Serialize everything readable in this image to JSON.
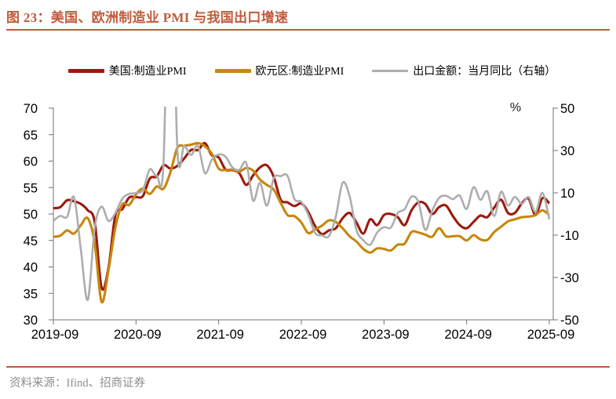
{
  "title": "图 23：美国、欧洲制造业 PMI 与我国出口增速",
  "source": "资料来源：Ifind、招商证券",
  "colors": {
    "accent": "#bf5b3b",
    "us_line": "#9b1a0e",
    "eu_line": "#c8860d",
    "export_line": "#adadad",
    "axis": "#737373",
    "tick_text": "#000000",
    "source_text": "#8f8f8f"
  },
  "legend": [
    {
      "label": "美国:制造业PMI",
      "color": "#9b1a0e"
    },
    {
      "label": "欧元区:制造业PMI",
      "color": "#c8860d"
    },
    {
      "label": "出口金额：当月同比（右轴）",
      "color": "#adadad"
    }
  ],
  "chart_data": {
    "type": "line",
    "title": "美国、欧洲制造业PMI与我国出口增速",
    "grid": false,
    "legend_position": "top",
    "x_ticks": [
      "2019-09",
      "2020-09",
      "2021-09",
      "2022-09",
      "2023-09",
      "2024-09",
      "2025-09"
    ],
    "left_axis": {
      "ticks": [
        70,
        65,
        60,
        55,
        50,
        45,
        40,
        35,
        30
      ],
      "range": [
        30,
        70
      ]
    },
    "right_axis": {
      "ticks": [
        50,
        30,
        10,
        -10,
        -30,
        -50
      ],
      "range": [
        -50,
        50
      ],
      "title": "%"
    },
    "x": [
      "2019-09",
      "2019-10",
      "2019-11",
      "2019-12",
      "2020-01",
      "2020-02",
      "2020-03",
      "2020-04",
      "2020-05",
      "2020-06",
      "2020-07",
      "2020-08",
      "2020-09",
      "2020-10",
      "2020-11",
      "2020-12",
      "2021-01",
      "2021-02",
      "2021-03",
      "2021-04",
      "2021-05",
      "2021-06",
      "2021-07",
      "2021-08",
      "2021-09",
      "2021-10",
      "2021-11",
      "2021-12",
      "2022-01",
      "2022-02",
      "2022-03",
      "2022-04",
      "2022-05",
      "2022-06",
      "2022-07",
      "2022-08",
      "2022-09",
      "2022-10",
      "2022-11",
      "2022-12",
      "2023-01",
      "2023-02",
      "2023-03",
      "2023-04",
      "2023-05",
      "2023-06",
      "2023-07",
      "2023-08",
      "2023-09",
      "2023-10",
      "2023-11",
      "2023-12",
      "2024-01",
      "2024-02",
      "2024-03",
      "2024-04",
      "2024-05",
      "2024-06",
      "2024-07",
      "2024-08",
      "2024-09",
      "2024-10",
      "2024-11",
      "2024-12",
      "2025-01",
      "2025-02",
      "2025-03",
      "2025-04",
      "2025-05",
      "2025-06",
      "2025-07",
      "2025-08",
      "2025-09"
    ],
    "series": [
      {
        "name": "美国:制造业PMI",
        "axis": "left",
        "color": "#9b1a0e",
        "values": [
          51.1,
          51.3,
          52.6,
          52.4,
          51.9,
          50.7,
          48.5,
          36.1,
          39.8,
          49.8,
          50.9,
          53.1,
          53.2,
          53.4,
          56.7,
          57.1,
          59.2,
          58.6,
          59.1,
          60.5,
          62.1,
          62.1,
          63.4,
          61.1,
          60.7,
          58.4,
          58.3,
          57.7,
          55.5,
          57.3,
          58.8,
          59.2,
          57.0,
          52.7,
          52.2,
          51.5,
          52.0,
          50.4,
          47.7,
          46.2,
          46.9,
          47.3,
          49.2,
          50.2,
          48.4,
          46.3,
          49.0,
          47.9,
          49.8,
          50.0,
          49.4,
          47.9,
          50.7,
          52.2,
          51.9,
          50.0,
          51.3,
          51.6,
          49.6,
          47.9,
          47.3,
          48.5,
          49.7,
          49.4,
          51.2,
          52.7,
          50.2,
          50.2,
          52.0,
          52.9,
          49.8,
          53.0,
          52.0
        ]
      },
      {
        "name": "欧元区:制造业PMI",
        "axis": "left",
        "color": "#c8860d",
        "values": [
          45.7,
          45.9,
          46.9,
          46.3,
          47.9,
          49.2,
          44.5,
          33.4,
          39.4,
          47.4,
          51.8,
          51.7,
          53.7,
          54.8,
          53.8,
          55.2,
          54.8,
          57.9,
          62.5,
          62.9,
          63.1,
          63.4,
          62.8,
          61.4,
          58.6,
          58.3,
          58.4,
          58.0,
          58.7,
          58.2,
          56.5,
          55.5,
          54.6,
          52.1,
          49.8,
          49.6,
          48.4,
          46.4,
          47.1,
          47.8,
          48.8,
          48.5,
          47.3,
          45.8,
          44.8,
          43.4,
          42.7,
          43.5,
          43.4,
          43.1,
          44.2,
          44.4,
          46.6,
          46.5,
          46.1,
          45.7,
          47.3,
          45.8,
          45.8,
          45.8,
          45.0,
          46.0,
          45.2,
          45.1,
          46.6,
          47.6,
          48.6,
          49.0,
          49.4,
          49.5,
          49.8,
          50.7,
          49.8
        ]
      },
      {
        "name": "出口金额：当月同比（右轴）",
        "axis": "right",
        "color": "#adadad",
        "values": [
          -3.2,
          -0.9,
          -1.3,
          7.9,
          -17.1,
          -40.6,
          -6.6,
          3.5,
          -3.3,
          0.5,
          7.2,
          9.5,
          9.9,
          11.4,
          21.1,
          18.1,
          24.8,
          154.9,
          30.6,
          32.3,
          27.9,
          32.2,
          19.3,
          25.6,
          28.1,
          27.1,
          22.0,
          20.9,
          24.1,
          6.3,
          14.7,
          3.9,
          16.9,
          17.9,
          18.0,
          7.1,
          5.7,
          -0.3,
          -9.0,
          -10.1,
          -10.5,
          -1.3,
          14.8,
          8.5,
          -7.5,
          -12.4,
          -14.5,
          -8.8,
          -6.2,
          -6.4,
          0.5,
          2.3,
          8.2,
          5.6,
          -7.5,
          1.5,
          7.6,
          8.6,
          7.0,
          8.7,
          2.4,
          12.7,
          6.7,
          10.7,
          -1.0,
          10.5,
          4.0,
          8.1,
          4.8,
          8.0,
          1.0,
          10.0,
          -2.5
        ]
      }
    ]
  }
}
